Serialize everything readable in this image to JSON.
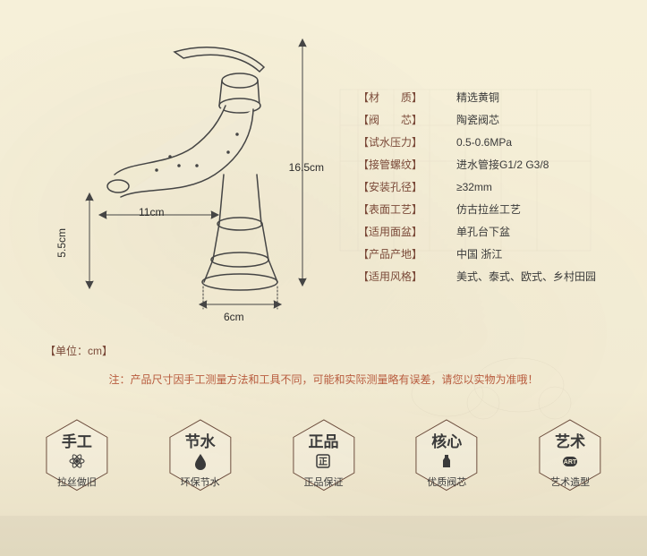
{
  "dimensions": {
    "height": "16.5cm",
    "width": "11cm",
    "base": "6cm",
    "depth": "5.5cm",
    "unit_label": "【单位：cm】"
  },
  "specs": [
    {
      "key": "【材　　质】",
      "value": "精选黄铜"
    },
    {
      "key": "【阀　　芯】",
      "value": "陶瓷阀芯"
    },
    {
      "key": "【试水压力】",
      "value": "0.5-0.6MPa"
    },
    {
      "key": "【接管螺纹】",
      "value": "进水管接G1/2 G3/8"
    },
    {
      "key": "【安装孔径】",
      "value": "≥32mm"
    },
    {
      "key": "【表面工艺】",
      "value": "仿古拉丝工艺"
    },
    {
      "key": "【适用面盆】",
      "value": "单孔台下盆"
    },
    {
      "key": "【产品产地】",
      "value": "中国  浙江"
    },
    {
      "key": "【适用风格】",
      "value": "美式、泰式、欧式、乡村田园"
    }
  ],
  "note": "注：产品尺寸因手工测量方法和工具不同，可能和实际测量略有误差，请您以实物为准哦！",
  "features": [
    {
      "title": "手工",
      "subtitle": "拉丝做旧",
      "icon": "atom"
    },
    {
      "title": "节水",
      "subtitle": "环保节水",
      "icon": "drop"
    },
    {
      "title": "正品",
      "subtitle": "正品保证",
      "icon": "seal"
    },
    {
      "title": "核心",
      "subtitle": "优质阀芯",
      "icon": "bottle"
    },
    {
      "title": "艺术",
      "subtitle": "艺术造型",
      "icon": "art"
    }
  ],
  "colors": {
    "hex_stroke": "#6a4a3a"
  }
}
